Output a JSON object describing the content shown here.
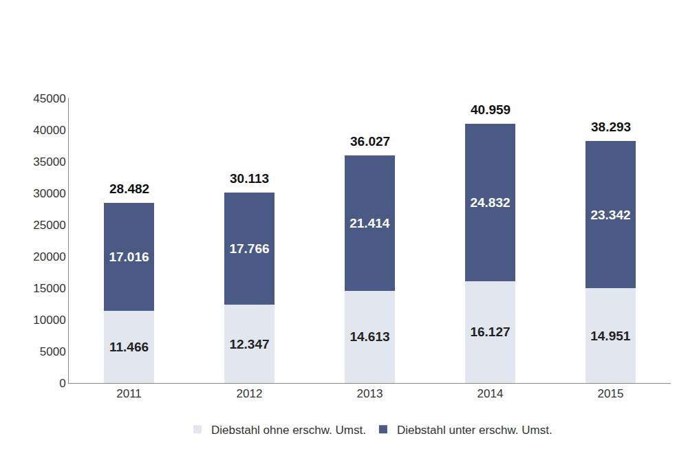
{
  "chart_data": {
    "type": "bar",
    "categories": [
      "2011",
      "2012",
      "2013",
      "2014",
      "2015"
    ],
    "series": [
      {
        "name": "Diebstahl ohne erschw. Umst.",
        "color": "#e1e6ef",
        "values": [
          11466,
          12347,
          14613,
          16127,
          14951
        ],
        "value_labels": [
          "11.466",
          "12.347",
          "14.613",
          "16.127",
          "14.951"
        ]
      },
      {
        "name": "Diebstahl unter erschw. Umst.",
        "color": "#4a5a85",
        "values": [
          17016,
          17766,
          21414,
          24832,
          23342
        ],
        "value_labels": [
          "17.016",
          "17.766",
          "21.414",
          "24.832",
          "23.342"
        ]
      }
    ],
    "totals": [
      28482,
      30113,
      36027,
      40959,
      38293
    ],
    "total_labels": [
      "28.482",
      "30.113",
      "36.027",
      "40.959",
      "38.293"
    ],
    "ylim": [
      0,
      45000
    ],
    "yticks": [
      0,
      5000,
      10000,
      15000,
      20000,
      25000,
      30000,
      35000,
      40000,
      45000
    ],
    "grid": false,
    "stacked": true,
    "data_labels": true,
    "legend": "bottom"
  }
}
